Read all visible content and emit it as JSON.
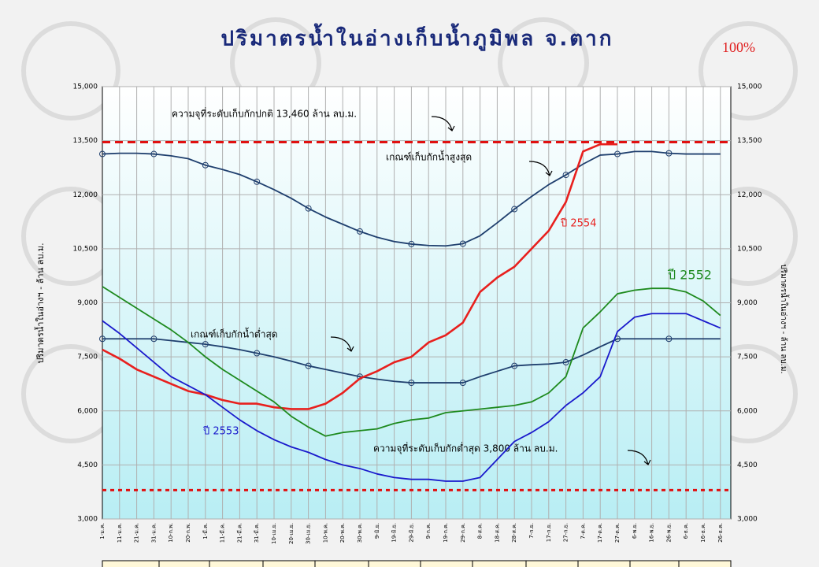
{
  "chart_data": {
    "type": "line",
    "title": "ปริมาตรน้ำในอ่างเก็บน้ำภูมิพล จ.ตาก",
    "badge": "100%",
    "y_label": "ปริมาตรน้ำในอ่างฯ - ล้าน ลบ.ม.",
    "categories": [
      "1-ม.ค.",
      "11-ม.ค.",
      "21-ม.ค.",
      "31-ม.ค.",
      "10-ก.พ.",
      "20-ก.พ.",
      "1-มี.ค.",
      "11-มี.ค.",
      "21-มี.ค.",
      "31-มี.ค.",
      "10-เม.ย.",
      "20-เม.ย.",
      "30-เม.ย.",
      "10-พ.ค.",
      "20-พ.ค.",
      "30-พ.ค.",
      "9-มิ.ย.",
      "19-มิ.ย.",
      "29-มิ.ย.",
      "9-ก.ค.",
      "19-ก.ค.",
      "29-ก.ค.",
      "8-ส.ค.",
      "18-ส.ค.",
      "28-ส.ค.",
      "7-ก.ย.",
      "17-ก.ย.",
      "27-ก.ย.",
      "7-ต.ค.",
      "17-ต.ค.",
      "27-ต.ค.",
      "6-พ.ย.",
      "16-พ.ย.",
      "26-พ.ย.",
      "6-ธ.ค.",
      "16-ธ.ค.",
      "26-ธ.ค."
    ],
    "ylim": [
      3000,
      15000
    ],
    "yticks": [
      {
        "value": 3000,
        "label": "3,000"
      },
      {
        "value": 4500,
        "label": "4,500"
      },
      {
        "value": 6000,
        "label": "6,000"
      },
      {
        "value": 7500,
        "label": "7,500"
      },
      {
        "value": 9000,
        "label": "9,000"
      },
      {
        "value": 10500,
        "label": "10,500"
      },
      {
        "value": 12000,
        "label": "12,000"
      },
      {
        "value": 13500,
        "label": "13,500"
      },
      {
        "value": 15000,
        "label": "15,000"
      }
    ],
    "grid": true,
    "reference_lines": [
      {
        "value": 13460,
        "label": "ความจุที่ระดับเก็บกักปกติ 13,460 ล้าน ลบ.ม.",
        "color": "#e01010",
        "dash": "10,6"
      },
      {
        "value": 3800,
        "label": "ความจุที่ระดับเก็บกักต่ำสุด 3,800 ล้าน ลบ.ม.",
        "color": "#e01010",
        "dash": "5,5"
      }
    ],
    "series": [
      {
        "name": "เกณฑ์เก็บกักน้ำสูงสุด",
        "color": "#1f3f6e",
        "markers": true,
        "values": [
          13130,
          13150,
          13150,
          13130,
          13080,
          13000,
          12820,
          12700,
          12560,
          12360,
          12140,
          11900,
          11620,
          11380,
          11180,
          10980,
          10820,
          10700,
          10630,
          10590,
          10580,
          10640,
          10860,
          11220,
          11600,
          11950,
          12280,
          12550,
          12850,
          13100,
          13130,
          13200,
          13200,
          13150,
          13130,
          13130,
          13130
        ]
      },
      {
        "name": "เกณฑ์เก็บกักน้ำต่ำสุด",
        "color": "#1f3f6e",
        "markers": true,
        "values": [
          8000,
          8000,
          8000,
          8000,
          7950,
          7900,
          7850,
          7780,
          7700,
          7600,
          7500,
          7380,
          7250,
          7150,
          7050,
          6950,
          6880,
          6820,
          6780,
          6780,
          6780,
          6780,
          6950,
          7100,
          7250,
          7280,
          7300,
          7350,
          7550,
          7780,
          8000,
          8000,
          8000,
          8000,
          8000,
          8000,
          8000
        ]
      },
      {
        "name": "ปี 2554",
        "color": "#e8201e",
        "values": [
          7700,
          7450,
          7150,
          6950,
          6750,
          6550,
          6450,
          6300,
          6200,
          6200,
          6100,
          6050,
          6050,
          6200,
          6500,
          6900,
          7100,
          7350,
          7500,
          7900,
          8100,
          8450,
          9300,
          9700,
          10000,
          10500,
          11000,
          11800,
          13200,
          13400,
          13400,
          null,
          null,
          null,
          null,
          null,
          null
        ]
      },
      {
        "name": "ปี 2552",
        "color": "#1e8a1e",
        "values": [
          9450,
          9150,
          8850,
          8550,
          8250,
          7900,
          7500,
          7150,
          6850,
          6550,
          6250,
          5850,
          5550,
          5300,
          5400,
          5450,
          5500,
          5650,
          5750,
          5800,
          5950,
          6000,
          6050,
          6100,
          6150,
          6250,
          6500,
          6950,
          8300,
          8750,
          9250,
          9350,
          9400,
          9400,
          9300,
          9050,
          8650
        ]
      },
      {
        "name": "ปี 2553",
        "color": "#1a1acc",
        "values": [
          8500,
          8150,
          7750,
          7350,
          6950,
          6700,
          6450,
          6100,
          5750,
          5450,
          5200,
          5000,
          4850,
          4650,
          4500,
          4400,
          4250,
          4150,
          4100,
          4100,
          4050,
          4050,
          4150,
          4650,
          5150,
          5400,
          5700,
          6150,
          6500,
          6950,
          8200,
          8600,
          8700,
          8700,
          8700,
          8500,
          8300
        ]
      }
    ]
  }
}
